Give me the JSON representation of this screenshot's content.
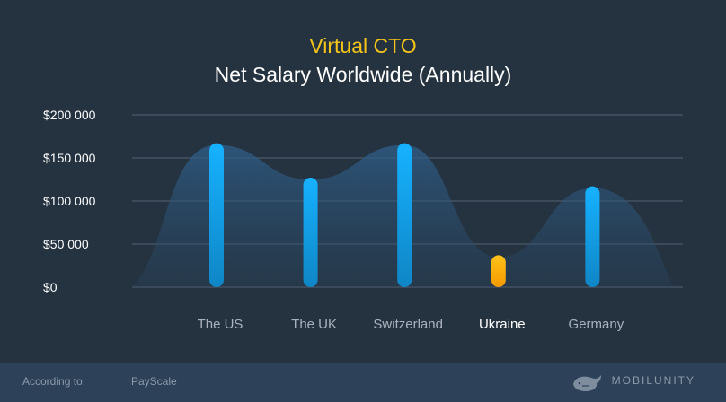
{
  "title": {
    "line1": "Virtual CTO",
    "line2": "Net Salary Worldwide (Annually)"
  },
  "colors": {
    "background": "#253341",
    "footer": "#2d4258",
    "bar_default": "#1aa7ee",
    "bar_highlight": "#f5a50a",
    "title_accent": "#f5c518"
  },
  "chart_data": {
    "type": "bar",
    "categories": [
      "The US",
      "The UK",
      "Switzerland",
      "Ukraine",
      "Germany"
    ],
    "values": [
      165000,
      125000,
      165000,
      35000,
      115000
    ],
    "highlight": "Ukraine",
    "ylim": [
      0,
      200000
    ],
    "yticks": [
      0,
      50000,
      100000,
      150000,
      200000
    ],
    "ytick_labels": [
      "$0",
      "$50 000",
      "$100 000",
      "$150 000",
      "$200 000"
    ],
    "grid": true
  },
  "footer": {
    "according_label": "According to:",
    "source": "PayScale",
    "brand": "MOBILUNITY",
    "logo_icon": "whale-logo-icon"
  }
}
